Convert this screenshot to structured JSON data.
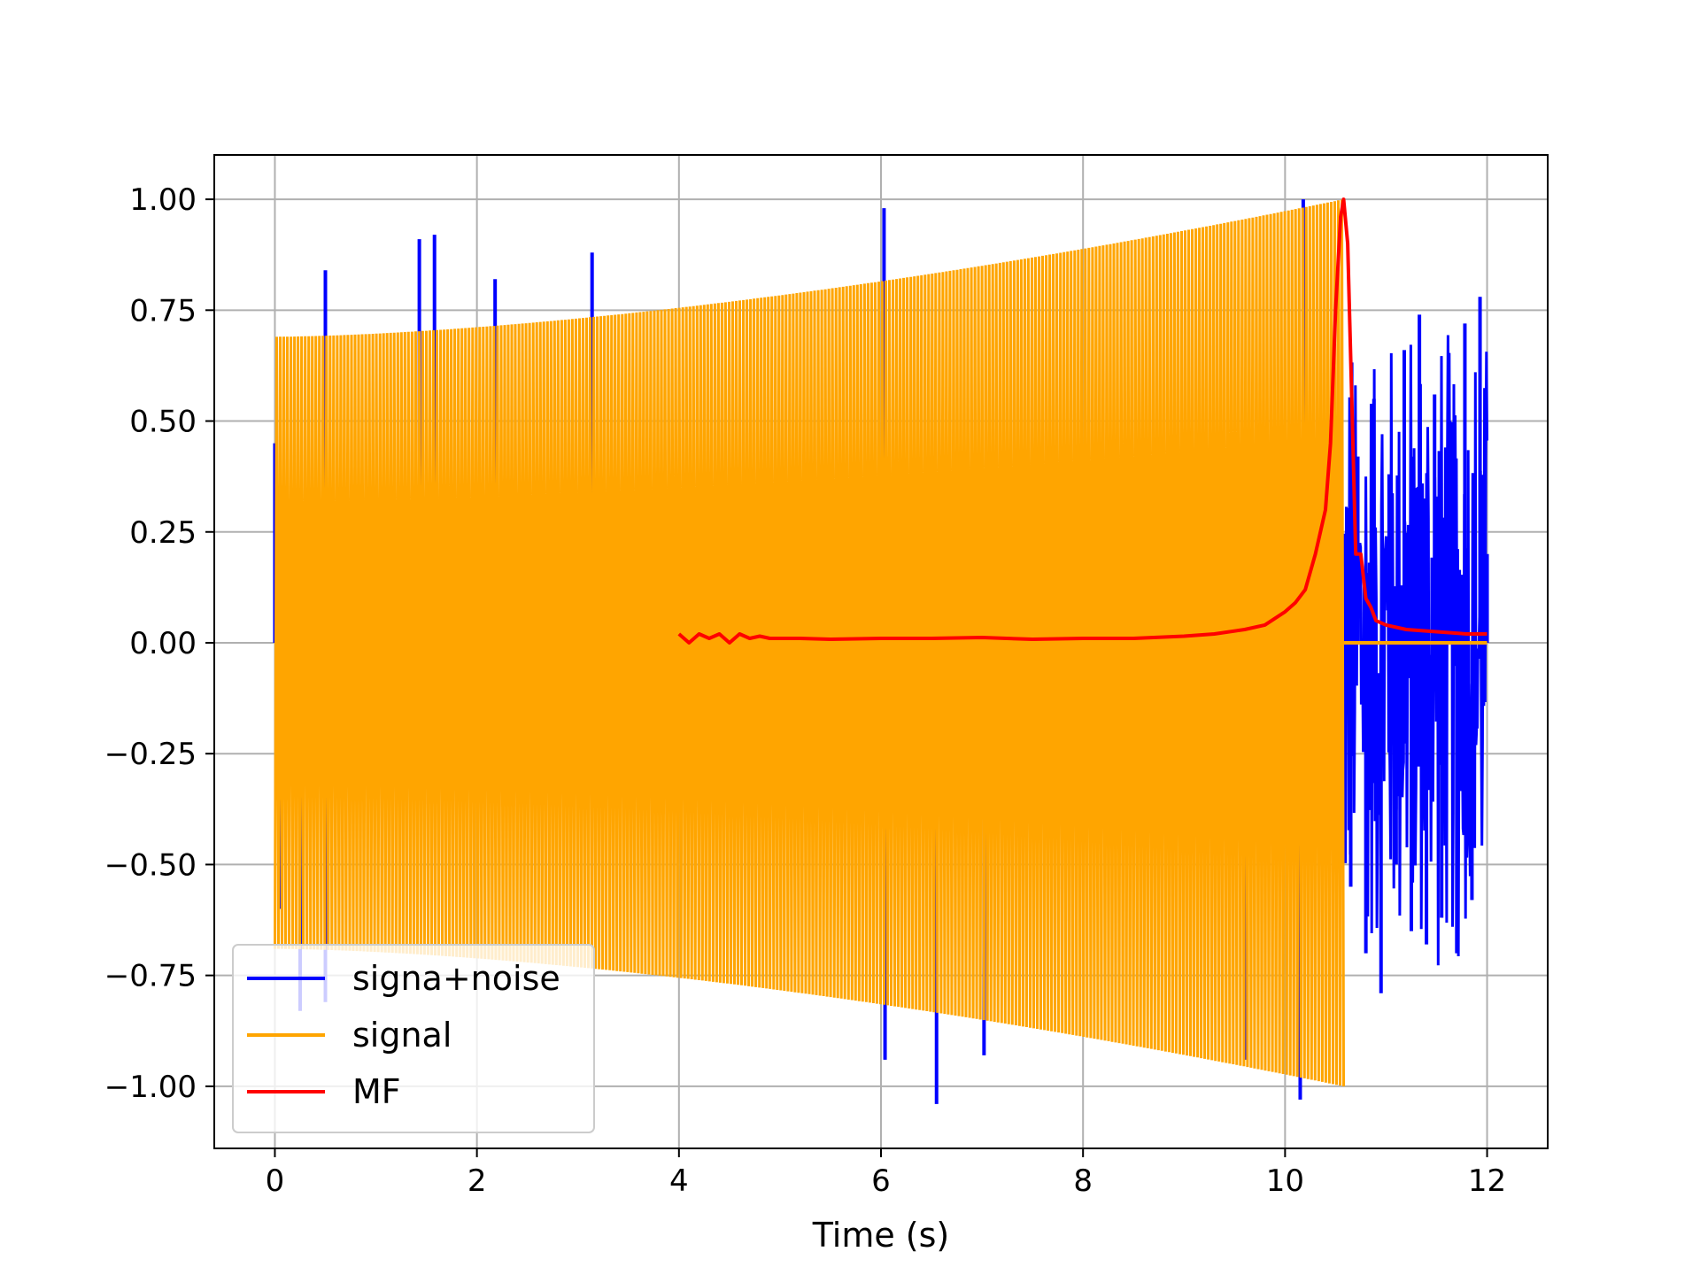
{
  "chart_data": {
    "type": "line",
    "title": "",
    "xlabel": "Time (s)",
    "ylabel": "",
    "xlim": [
      -0.6,
      12.6
    ],
    "ylim": [
      -1.14,
      1.1
    ],
    "grid": true,
    "legend_position": "lower-left",
    "x_ticks": [
      0,
      2,
      4,
      6,
      8,
      10,
      12
    ],
    "x_tick_labels": [
      "0",
      "2",
      "4",
      "6",
      "8",
      "10",
      "12"
    ],
    "y_ticks": [
      1.0,
      0.75,
      0.5,
      0.25,
      0.0,
      -0.25,
      -0.5,
      -0.75,
      -1.0
    ],
    "y_tick_labels": [
      "1.00",
      "0.75",
      "0.50",
      "0.25",
      "0.00",
      "−0.25",
      "−0.50",
      "−0.75",
      "−1.00"
    ],
    "series": [
      {
        "name": "signa+noise",
        "color": "#0000ff",
        "x": [
          0.0,
          0.05,
          0.5,
          1.43,
          1.58,
          2.18,
          3.14,
          6.03,
          10.18,
          10.6,
          10.65,
          10.72,
          10.8,
          10.88,
          10.95,
          11.03,
          11.1,
          11.18,
          11.25,
          11.33,
          11.4,
          11.48,
          11.55,
          11.63,
          11.7,
          11.78,
          11.85,
          11.93,
          12.0
        ],
        "y": [
          0.45,
          -0.6,
          0.84,
          0.91,
          0.92,
          0.82,
          0.88,
          0.98,
          1.0,
          0.1,
          -0.55,
          0.42,
          -0.7,
          0.55,
          -0.79,
          0.38,
          -0.5,
          0.66,
          -0.65,
          0.74,
          -0.68,
          0.56,
          -0.62,
          0.5,
          -0.7,
          0.72,
          -0.58,
          0.78,
          0.2
        ],
        "extra_spikes": [
          {
            "x": 6.04,
            "y": -0.94
          },
          {
            "x": 6.55,
            "y": -1.04
          },
          {
            "x": 7.02,
            "y": -0.93
          },
          {
            "x": 9.6,
            "y": -0.94
          },
          {
            "x": 10.15,
            "y": -1.03
          },
          {
            "x": 0.25,
            "y": -0.83
          },
          {
            "x": 0.5,
            "y": -0.81
          }
        ]
      },
      {
        "name": "signal",
        "color": "#ffa500",
        "description_amplitude_start": 0.69,
        "x_start": 0.0,
        "x_end": 10.58,
        "amplitude_start": 0.69,
        "amplitude_end": 1.0,
        "after_end_value": 0.0,
        "after_end_x_end": 12.0
      },
      {
        "name": "MF",
        "color": "#ff0000",
        "x": [
          4.0,
          4.1,
          4.2,
          4.3,
          4.4,
          4.5,
          4.6,
          4.7,
          4.8,
          4.9,
          5.0,
          5.2,
          5.5,
          6.0,
          6.5,
          7.0,
          7.5,
          8.0,
          8.5,
          9.0,
          9.3,
          9.6,
          9.8,
          10.0,
          10.1,
          10.2,
          10.3,
          10.4,
          10.45,
          10.5,
          10.55,
          10.58,
          10.62,
          10.66,
          10.7,
          10.75,
          10.8,
          10.85,
          10.9,
          11.0,
          11.2,
          11.5,
          11.8,
          12.0
        ],
        "y": [
          0.02,
          0.0,
          0.02,
          0.01,
          0.02,
          0.0,
          0.02,
          0.01,
          0.015,
          0.01,
          0.01,
          0.01,
          0.008,
          0.01,
          0.01,
          0.012,
          0.008,
          0.01,
          0.01,
          0.015,
          0.02,
          0.03,
          0.04,
          0.07,
          0.09,
          0.12,
          0.2,
          0.3,
          0.45,
          0.75,
          0.96,
          1.0,
          0.9,
          0.55,
          0.2,
          0.2,
          0.1,
          0.08,
          0.05,
          0.04,
          0.03,
          0.025,
          0.02,
          0.02
        ]
      }
    ]
  }
}
